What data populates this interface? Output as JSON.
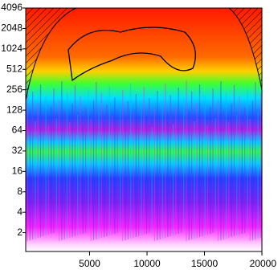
{
  "chart_data": {
    "type": "wavelet",
    "xlim": [
      0,
      20000
    ],
    "xticks": [
      5000,
      10000,
      15000,
      20000
    ],
    "ylim": [
      1,
      4096
    ],
    "yticks": [
      2,
      4,
      8,
      16,
      32,
      64,
      128,
      256,
      512,
      1024,
      2048,
      4096
    ],
    "log_y": true
  }
}
